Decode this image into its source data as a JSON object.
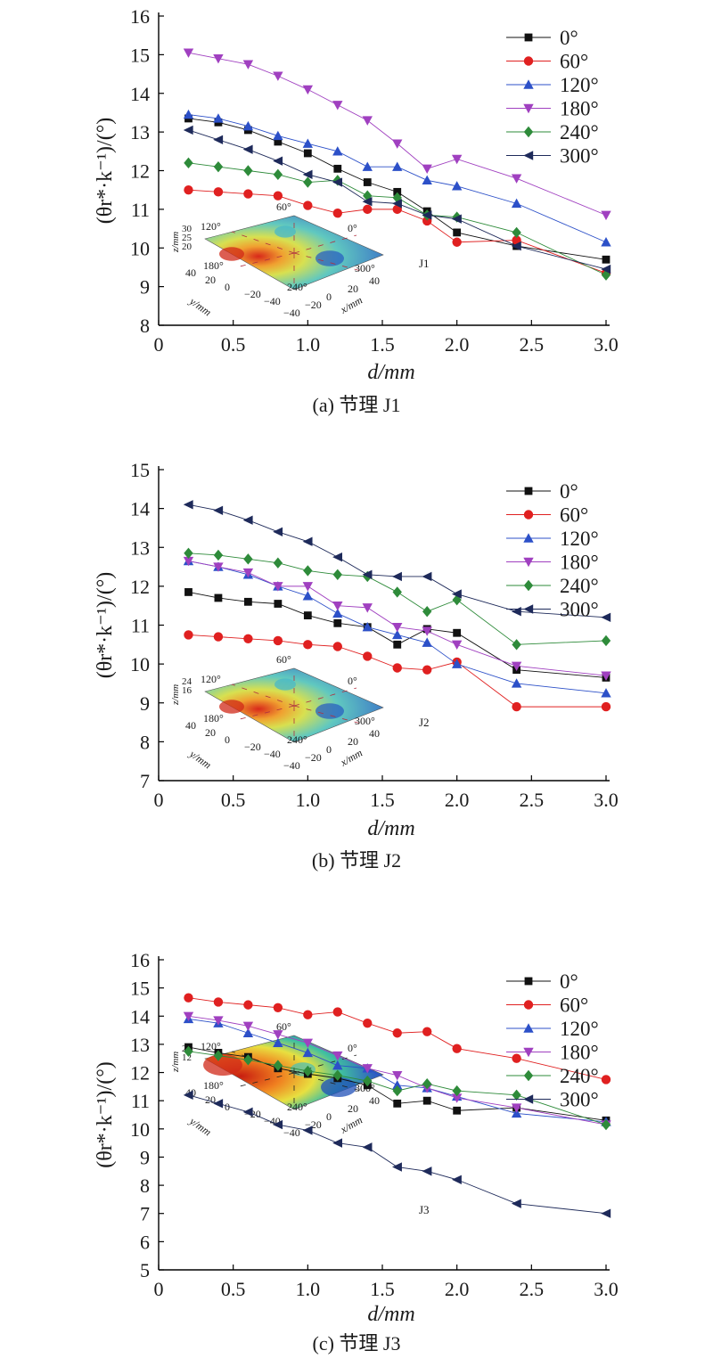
{
  "chart_data": [
    {
      "type": "line",
      "xlabel": "d/mm",
      "ylabel": "(θr*·k⁻¹)/(°)",
      "caption": "(a) 节理 J1",
      "xlim": [
        0,
        3.0
      ],
      "ylim": [
        8,
        16
      ],
      "xticks": [
        "0",
        "0.5",
        "1.0",
        "1.5",
        "2.0",
        "2.5",
        "3.0"
      ],
      "yticks": [
        "8",
        "9",
        "10",
        "11",
        "12",
        "13",
        "14",
        "15",
        "16"
      ],
      "legend_position": "top-right",
      "inset": {
        "id": "J1",
        "z_axis": "z/mm",
        "z_ticks": [
          "30",
          "25",
          "20"
        ],
        "y_axis": "y/mm",
        "y_ticks": [
          "40",
          "20",
          "0",
          "−20",
          "−40"
        ],
        "x_axis": "x/mm",
        "x_ticks": [
          "−40",
          "−20",
          "0",
          "20",
          "40"
        ],
        "angles": [
          "0°",
          "60°",
          "120°",
          "180°",
          "240°",
          "300°"
        ]
      },
      "x": [
        0.2,
        0.4,
        0.6,
        0.8,
        1.0,
        1.2,
        1.4,
        1.6,
        1.8,
        2.0,
        2.4,
        3.0
      ],
      "series": [
        {
          "name": "0°",
          "marker": "square",
          "color": "#111111",
          "values": [
            13.35,
            13.25,
            13.05,
            12.75,
            12.45,
            12.05,
            11.7,
            11.45,
            10.95,
            10.4,
            10.05,
            9.7
          ]
        },
        {
          "name": "60°",
          "marker": "circle",
          "color": "#e02020",
          "values": [
            11.5,
            11.45,
            11.4,
            11.35,
            11.1,
            10.9,
            11.0,
            11.0,
            10.7,
            10.15,
            10.2,
            9.35
          ]
        },
        {
          "name": "120°",
          "marker": "triangle-up",
          "color": "#2c50c8",
          "values": [
            13.45,
            13.35,
            13.15,
            12.9,
            12.7,
            12.5,
            12.1,
            12.1,
            11.75,
            11.6,
            11.15,
            10.15
          ]
        },
        {
          "name": "180°",
          "marker": "triangle-down",
          "color": "#a040c0",
          "values": [
            15.05,
            14.9,
            14.75,
            14.45,
            14.1,
            13.7,
            13.3,
            12.7,
            12.05,
            12.3,
            11.8,
            10.85
          ]
        },
        {
          "name": "240°",
          "marker": "diamond",
          "color": "#2e8b3a",
          "values": [
            12.2,
            12.1,
            12.0,
            11.9,
            11.7,
            11.75,
            11.35,
            11.3,
            10.85,
            10.8,
            10.4,
            9.3
          ]
        },
        {
          "name": "300°",
          "marker": "triangle-left",
          "color": "#1e2a5a",
          "values": [
            13.05,
            12.8,
            12.55,
            12.25,
            11.9,
            11.7,
            11.2,
            11.15,
            10.85,
            10.75,
            10.05,
            9.45
          ]
        }
      ]
    },
    {
      "type": "line",
      "xlabel": "d/mm",
      "ylabel": "(θr*·k⁻¹)/(°)",
      "caption": "(b) 节理 J2",
      "xlim": [
        0,
        3.0
      ],
      "ylim": [
        7,
        15
      ],
      "xticks": [
        "0",
        "0.5",
        "1.0",
        "1.5",
        "2.0",
        "2.5",
        "3.0"
      ],
      "yticks": [
        "7",
        "8",
        "9",
        "10",
        "11",
        "12",
        "13",
        "14",
        "15"
      ],
      "legend_position": "top-right",
      "inset": {
        "id": "J2",
        "z_axis": "z/mm",
        "z_ticks": [
          "24",
          "16"
        ],
        "y_axis": "y/mm",
        "y_ticks": [
          "40",
          "20",
          "0",
          "−20",
          "−40"
        ],
        "x_axis": "x/mm",
        "x_ticks": [
          "−40",
          "−20",
          "0",
          "20",
          "40"
        ],
        "angles": [
          "0°",
          "60°",
          "120°",
          "180°",
          "240°",
          "300°"
        ]
      },
      "x": [
        0.2,
        0.4,
        0.6,
        0.8,
        1.0,
        1.2,
        1.4,
        1.6,
        1.8,
        2.0,
        2.4,
        3.0
      ],
      "series": [
        {
          "name": "0°",
          "marker": "square",
          "color": "#111111",
          "values": [
            11.85,
            11.7,
            11.6,
            11.55,
            11.25,
            11.05,
            10.95,
            10.5,
            10.9,
            10.8,
            9.85,
            9.65
          ]
        },
        {
          "name": "60°",
          "marker": "circle",
          "color": "#e02020",
          "values": [
            10.75,
            10.7,
            10.65,
            10.6,
            10.5,
            10.45,
            10.2,
            9.9,
            9.85,
            10.05,
            8.9,
            8.9
          ]
        },
        {
          "name": "120°",
          "marker": "triangle-up",
          "color": "#2c50c8",
          "values": [
            12.65,
            12.5,
            12.3,
            12.0,
            11.75,
            11.3,
            10.95,
            10.75,
            10.55,
            10.0,
            9.5,
            9.25
          ]
        },
        {
          "name": "180°",
          "marker": "triangle-down",
          "color": "#a040c0",
          "values": [
            12.65,
            12.5,
            12.35,
            12.0,
            12.0,
            11.5,
            11.45,
            10.95,
            10.85,
            10.5,
            9.95,
            9.7
          ]
        },
        {
          "name": "240°",
          "marker": "diamond",
          "color": "#2e8b3a",
          "values": [
            12.85,
            12.8,
            12.7,
            12.6,
            12.4,
            12.3,
            12.25,
            11.85,
            11.35,
            11.65,
            10.5,
            10.6
          ]
        },
        {
          "name": "300°",
          "marker": "triangle-left",
          "color": "#1e2a5a",
          "values": [
            14.1,
            13.95,
            13.7,
            13.4,
            13.15,
            12.75,
            12.3,
            12.25,
            12.25,
            11.8,
            11.35,
            11.2
          ]
        }
      ]
    },
    {
      "type": "line",
      "xlabel": "d/mm",
      "ylabel": "(θr*·k⁻¹)/(°)",
      "caption": "(c) 节理 J3",
      "xlim": [
        0,
        3.0
      ],
      "ylim": [
        5,
        16
      ],
      "xticks": [
        "0",
        "0.5",
        "1.0",
        "1.5",
        "2.0",
        "2.5",
        "3.0"
      ],
      "yticks": [
        "5",
        "6",
        "7",
        "8",
        "9",
        "10",
        "11",
        "12",
        "13",
        "14",
        "15",
        "16"
      ],
      "legend_position": "top-right",
      "inset": {
        "id": "J3",
        "z_axis": "z/mm",
        "z_ticks": [
          "22",
          "12"
        ],
        "y_axis": "y/mm",
        "y_ticks": [
          "40",
          "20",
          "0",
          "−20",
          "−40"
        ],
        "x_axis": "x/mm",
        "x_ticks": [
          "−40",
          "−20",
          "0",
          "20",
          "40"
        ],
        "angles": [
          "0°",
          "60°",
          "120°",
          "180°",
          "240°",
          "300°"
        ]
      },
      "x": [
        0.2,
        0.4,
        0.6,
        0.8,
        1.0,
        1.2,
        1.4,
        1.6,
        1.8,
        2.0,
        2.4,
        3.0
      ],
      "series": [
        {
          "name": "0°",
          "marker": "square",
          "color": "#111111",
          "values": [
            12.9,
            12.7,
            12.55,
            12.15,
            11.95,
            11.8,
            11.55,
            10.9,
            11.0,
            10.65,
            10.75,
            10.3
          ]
        },
        {
          "name": "60°",
          "marker": "circle",
          "color": "#e02020",
          "values": [
            14.65,
            14.5,
            14.4,
            14.3,
            14.05,
            14.15,
            13.75,
            13.4,
            13.45,
            12.85,
            12.5,
            11.75
          ]
        },
        {
          "name": "120°",
          "marker": "triangle-up",
          "color": "#2c50c8",
          "values": [
            13.9,
            13.75,
            13.4,
            13.05,
            12.7,
            12.25,
            12.15,
            11.55,
            11.45,
            11.15,
            10.55,
            10.25
          ]
        },
        {
          "name": "180°",
          "marker": "triangle-down",
          "color": "#a040c0",
          "values": [
            14.0,
            13.85,
            13.65,
            13.35,
            13.05,
            12.6,
            12.15,
            11.9,
            11.45,
            11.1,
            10.75,
            10.15
          ]
        },
        {
          "name": "240°",
          "marker": "diamond",
          "color": "#2e8b3a",
          "values": [
            12.75,
            12.6,
            12.45,
            12.25,
            12.05,
            11.9,
            11.7,
            11.35,
            11.6,
            11.35,
            11.2,
            10.15
          ]
        },
        {
          "name": "300°",
          "marker": "triangle-left",
          "color": "#1e2a5a",
          "values": [
            11.2,
            10.9,
            10.6,
            10.15,
            9.95,
            9.5,
            9.35,
            8.65,
            8.5,
            8.2,
            7.35,
            7.0
          ]
        }
      ]
    }
  ]
}
